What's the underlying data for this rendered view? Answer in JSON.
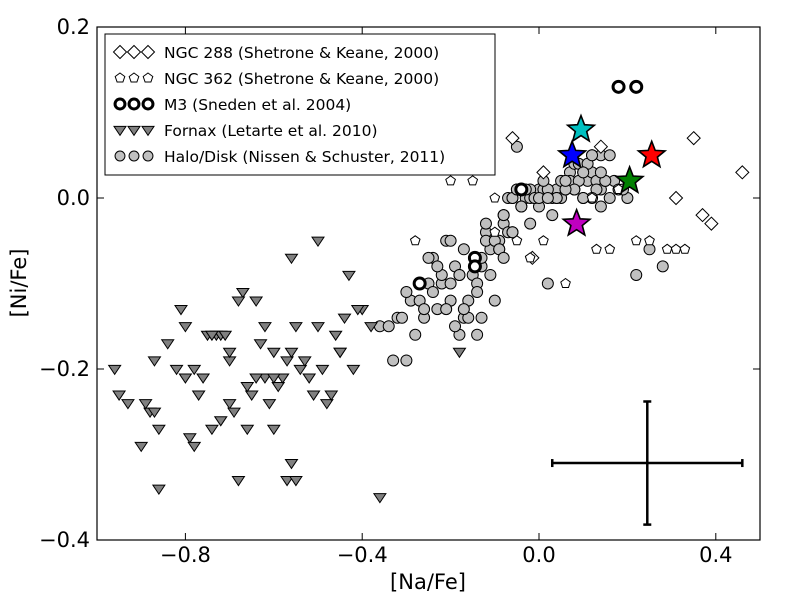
{
  "chart_data": {
    "type": "scatter",
    "title": "",
    "xlabel": "[Na/Fe]",
    "ylabel": "[Ni/Fe]",
    "xlim": [
      -1.0,
      0.5
    ],
    "ylim": [
      -0.4,
      0.2
    ],
    "x_ticks": [
      -0.8,
      -0.4,
      0.0,
      0.4
    ],
    "x_tick_labels": [
      "−0.8",
      "−0.4",
      "0.0",
      "0.4"
    ],
    "y_ticks": [
      -0.4,
      -0.2,
      0.0,
      0.2
    ],
    "y_tick_labels": [
      "−0.4",
      "−0.2",
      "0.0",
      "0.2"
    ],
    "grid": false,
    "legend_position": "top-left",
    "series": [
      {
        "name": "NGC 288 (Shetrone & Keane, 2000)",
        "marker": "diamond",
        "fill": "#ffffff",
        "x": [
          -0.13,
          -0.06,
          0.01,
          0.35,
          0.31,
          0.37,
          0.39,
          0.46,
          -0.015,
          0.14
        ],
        "y": [
          0.04,
          0.07,
          0.03,
          0.07,
          0.0,
          -0.02,
          -0.03,
          0.03,
          -0.07,
          0.06
        ]
      },
      {
        "name": "NGC 362 (Shetrone & Keane, 2000)",
        "marker": "pentagon",
        "fill": "#ffffff",
        "x": [
          -0.28,
          -0.2,
          -0.15,
          -0.1,
          -0.05,
          -0.02,
          0.01,
          0.06,
          0.13,
          0.16,
          0.22,
          0.25,
          0.29,
          0.31,
          0.33,
          -0.1,
          -0.21,
          0.12,
          0.18
        ],
        "y": [
          -0.05,
          0.02,
          0.02,
          -0.04,
          -0.05,
          -0.07,
          -0.05,
          -0.1,
          -0.06,
          -0.06,
          -0.05,
          -0.05,
          -0.06,
          -0.06,
          -0.06,
          0.0,
          0.06,
          0.0,
          0.01
        ]
      },
      {
        "name": "M3 (Sneden et al. 2004)",
        "marker": "circle",
        "fill": "#ffffff",
        "x": [
          0.18,
          0.22,
          -0.04,
          -0.145,
          -0.145,
          -0.27
        ],
        "y": [
          0.13,
          0.13,
          0.01,
          -0.07,
          -0.08,
          -0.1
        ]
      },
      {
        "name": "Fornax (Letarte et al. 2010)",
        "marker": "triangle-down",
        "fill": "#808080",
        "x": [
          -0.96,
          -0.95,
          -0.93,
          -0.9,
          -0.88,
          -0.87,
          -0.86,
          -0.86,
          -0.81,
          -0.8,
          -0.79,
          -0.78,
          -0.77,
          -0.75,
          -0.74,
          -0.73,
          -0.72,
          -0.72,
          -0.71,
          -0.7,
          -0.7,
          -0.69,
          -0.68,
          -0.67,
          -0.66,
          -0.65,
          -0.64,
          -0.63,
          -0.62,
          -0.62,
          -0.61,
          -0.6,
          -0.6,
          -0.59,
          -0.58,
          -0.57,
          -0.56,
          -0.56,
          -0.55,
          -0.54,
          -0.53,
          -0.51,
          -0.5,
          -0.49,
          -0.48,
          -0.47,
          -0.46,
          -0.45,
          -0.44,
          -0.43,
          -0.42,
          -0.4,
          -0.36,
          -0.38,
          -0.41,
          -0.45,
          -0.52,
          -0.55,
          -0.57,
          -0.6,
          -0.66,
          -0.68,
          -0.74,
          -0.78,
          -0.82,
          -0.84,
          -0.87,
          -0.89,
          -0.5,
          -0.56,
          -0.64,
          -0.7,
          -0.76,
          -0.8,
          -0.18
        ],
        "y": [
          -0.2,
          -0.23,
          -0.24,
          -0.29,
          -0.25,
          -0.25,
          -0.27,
          -0.34,
          -0.13,
          -0.15,
          -0.28,
          -0.29,
          -0.23,
          -0.16,
          -0.27,
          -0.16,
          -0.16,
          -0.26,
          -0.16,
          -0.19,
          -0.24,
          -0.25,
          -0.33,
          -0.11,
          -0.27,
          -0.23,
          -0.12,
          -0.17,
          -0.15,
          -0.21,
          -0.24,
          -0.18,
          -0.27,
          -0.22,
          -0.21,
          -0.33,
          -0.07,
          -0.31,
          -0.33,
          -0.2,
          -0.19,
          -0.23,
          -0.05,
          -0.2,
          -0.24,
          -0.23,
          -0.16,
          -0.18,
          -0.14,
          -0.09,
          -0.2,
          -0.13,
          -0.35,
          -0.15,
          -0.13,
          -0.18,
          -0.21,
          -0.15,
          -0.19,
          -0.21,
          -0.22,
          -0.12,
          -0.16,
          -0.2,
          -0.2,
          -0.17,
          -0.19,
          -0.24,
          -0.15,
          -0.18,
          -0.21,
          -0.18,
          -0.21,
          -0.21,
          -0.18
        ]
      },
      {
        "name": "Halo/Disk (Nissen & Schuster, 2011)",
        "marker": "circle",
        "fill": "#c0c0c0",
        "x": [
          -0.36,
          -0.34,
          -0.33,
          -0.3,
          -0.29,
          -0.27,
          -0.26,
          -0.25,
          -0.24,
          -0.23,
          -0.22,
          -0.21,
          -0.2,
          -0.19,
          -0.18,
          -0.17,
          -0.16,
          -0.15,
          -0.14,
          -0.13,
          -0.12,
          -0.11,
          -0.1,
          -0.09,
          -0.08,
          -0.07,
          -0.06,
          -0.05,
          -0.04,
          -0.03,
          -0.02,
          -0.01,
          0.0,
          0.01,
          0.02,
          0.03,
          0.04,
          0.05,
          0.06,
          0.07,
          0.08,
          0.09,
          0.1,
          0.11,
          0.12,
          0.13,
          0.14,
          0.15,
          0.16,
          0.17,
          0.18,
          0.2,
          0.22,
          0.25,
          0.28,
          -0.32,
          -0.28,
          -0.24,
          -0.22,
          -0.2,
          -0.18,
          -0.16,
          -0.14,
          -0.12,
          -0.1,
          -0.08,
          -0.06,
          -0.04,
          -0.02,
          0.0,
          0.02,
          0.04,
          0.06,
          0.08,
          0.1,
          0.12,
          0.14,
          -0.31,
          -0.26,
          -0.21,
          -0.19,
          -0.17,
          -0.13,
          -0.11,
          -0.09,
          -0.07,
          -0.05,
          -0.03,
          -0.01,
          0.01,
          0.03,
          0.05,
          0.07,
          0.09,
          0.11,
          0.13,
          0.15,
          0.19,
          -0.12,
          -0.08,
          -0.04,
          0.0,
          0.04,
          0.08,
          0.12,
          -0.3,
          -0.23,
          -0.18,
          -0.14,
          -0.1,
          -0.06,
          -0.02,
          0.02,
          0.06,
          0.1,
          0.14,
          -0.17,
          -0.13,
          -0.09,
          -0.05,
          0.12,
          0.16,
          0.06,
          0.1,
          0.14,
          0.02,
          -0.06,
          -0.08,
          -0.2,
          -0.25
        ],
        "y": [
          -0.15,
          -0.15,
          -0.19,
          -0.19,
          -0.12,
          -0.12,
          -0.14,
          -0.1,
          -0.07,
          -0.13,
          -0.1,
          -0.05,
          -0.1,
          -0.08,
          -0.09,
          -0.14,
          -0.12,
          -0.09,
          -0.1,
          -0.08,
          -0.04,
          -0.06,
          -0.05,
          -0.05,
          -0.02,
          0.0,
          0.0,
          0.01,
          0.01,
          0.0,
          0.0,
          0.0,
          0.01,
          0.01,
          0.01,
          0.0,
          0.01,
          0.0,
          0.02,
          0.03,
          0.04,
          0.04,
          0.03,
          0.02,
          0.03,
          0.02,
          0.01,
          0.02,
          0.0,
          0.02,
          0.01,
          0.0,
          -0.09,
          -0.06,
          -0.08,
          -0.14,
          -0.16,
          -0.11,
          -0.09,
          -0.12,
          -0.16,
          -0.14,
          -0.11,
          -0.05,
          -0.05,
          -0.03,
          0.0,
          -0.01,
          0.01,
          -0.01,
          0.01,
          0.0,
          0.01,
          0.01,
          0.0,
          0.05,
          0.05,
          -0.14,
          -0.13,
          -0.13,
          -0.15,
          -0.06,
          -0.07,
          -0.09,
          -0.06,
          -0.04,
          0.01,
          0.01,
          0.0,
          0.02,
          -0.02,
          0.02,
          0.02,
          0.02,
          0.04,
          0.01,
          0.02,
          0.01,
          -0.03,
          -0.02,
          -0.01,
          0.0,
          0.0,
          0.01,
          0.0,
          -0.11,
          -0.08,
          -0.09,
          -0.16,
          -0.12,
          -0.04,
          -0.03,
          0.0,
          0.01,
          0.03,
          0.03,
          -0.13,
          -0.14,
          -0.06,
          0.06,
          0.05,
          0.05,
          0.02,
          0.0,
          -0.01,
          -0.1,
          -0.04,
          -0.07,
          -0.05,
          -0.07
        ]
      }
    ],
    "highlighted_stars": [
      {
        "color": "#00c0c0",
        "x": 0.095,
        "y": 0.08
      },
      {
        "color": "#0000ff",
        "x": 0.075,
        "y": 0.05
      },
      {
        "color": "#ff0000",
        "x": 0.255,
        "y": 0.05
      },
      {
        "color": "#008000",
        "x": 0.205,
        "y": 0.02
      },
      {
        "color": "#c000c0",
        "x": 0.085,
        "y": -0.03
      }
    ],
    "error_bar": {
      "x": 0.245,
      "y": -0.31,
      "xerr": 0.215,
      "yerr": 0.072
    }
  }
}
